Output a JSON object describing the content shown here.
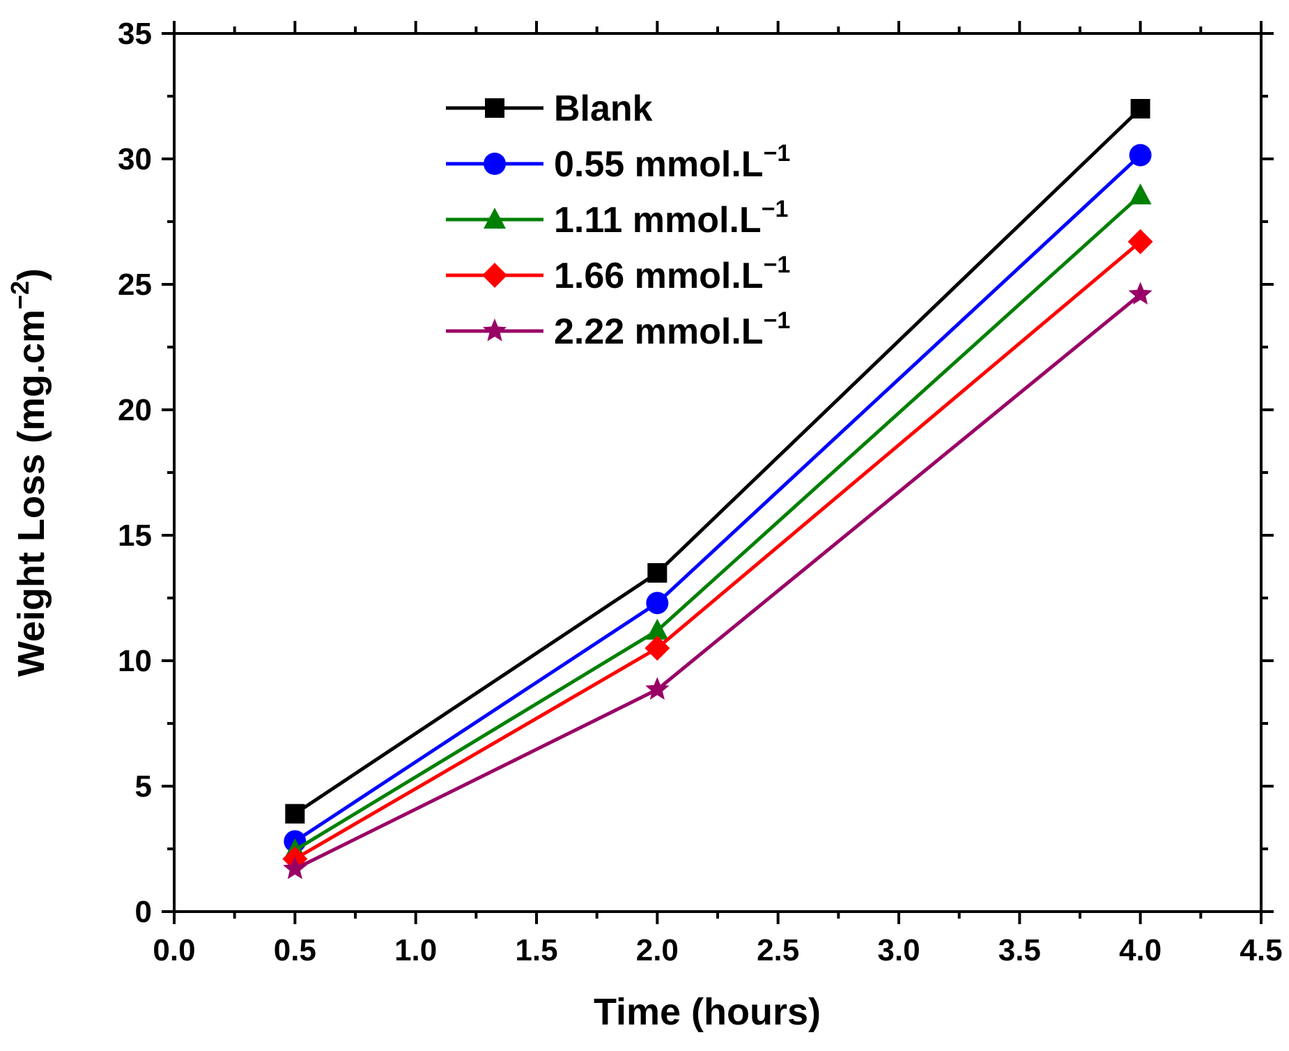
{
  "chart_data": {
    "type": "line",
    "title": "",
    "xlabel": "Time (hours)",
    "ylabel": "Weight Loss (mg.cm",
    "ylabel_sup": "−2",
    "ylabel_close": ")",
    "xlim": [
      0.0,
      4.5
    ],
    "ylim": [
      0,
      35
    ],
    "x_ticks": [
      0.0,
      0.5,
      1.0,
      1.5,
      2.0,
      2.5,
      3.0,
      3.5,
      4.0,
      4.5
    ],
    "x_tick_labels": [
      "0.0",
      "0.5",
      "1.0",
      "1.5",
      "2.0",
      "2.5",
      "3.0",
      "3.5",
      "4.0",
      "4.5"
    ],
    "y_ticks": [
      0,
      5,
      10,
      15,
      20,
      25,
      30,
      35
    ],
    "y_tick_labels": [
      "0",
      "5",
      "10",
      "15",
      "20",
      "25",
      "30",
      "35"
    ],
    "x": [
      0.5,
      2.0,
      4.0
    ],
    "series": [
      {
        "name": "Blank",
        "unit_sup": "",
        "color": "#000000",
        "marker": "square",
        "values": [
          3.9,
          13.5,
          32.0
        ]
      },
      {
        "name": "0.55 mmol.L",
        "unit_sup": "−1",
        "color": "#0000ff",
        "marker": "circle",
        "values": [
          2.8,
          12.3,
          30.15
        ]
      },
      {
        "name": "1.11 mmol.L",
        "unit_sup": "−1",
        "color": "#008000",
        "marker": "triangle",
        "values": [
          2.45,
          11.2,
          28.55
        ]
      },
      {
        "name": "1.66 mmol.L",
        "unit_sup": "−1",
        "color": "#ff0000",
        "marker": "diamond",
        "values": [
          2.1,
          10.5,
          26.7
        ]
      },
      {
        "name": "2.22 mmol.L",
        "unit_sup": "−1",
        "color": "#990066",
        "marker": "star",
        "values": [
          1.7,
          8.85,
          24.6
        ]
      }
    ],
    "legend_position": "top-center",
    "grid": false
  }
}
